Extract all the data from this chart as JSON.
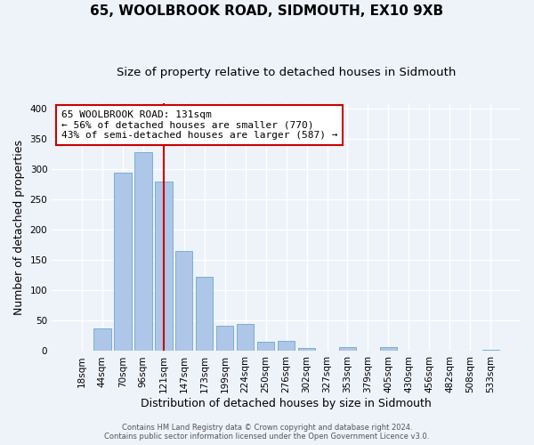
{
  "title": "65, WOOLBROOK ROAD, SIDMOUTH, EX10 9XB",
  "subtitle": "Size of property relative to detached houses in Sidmouth",
  "xlabel": "Distribution of detached houses by size in Sidmouth",
  "ylabel": "Number of detached properties",
  "bin_labels": [
    "18sqm",
    "44sqm",
    "70sqm",
    "96sqm",
    "121sqm",
    "147sqm",
    "173sqm",
    "199sqm",
    "224sqm",
    "250sqm",
    "276sqm",
    "302sqm",
    "327sqm",
    "353sqm",
    "379sqm",
    "405sqm",
    "430sqm",
    "456sqm",
    "482sqm",
    "508sqm",
    "533sqm"
  ],
  "bar_heights": [
    0,
    37,
    295,
    328,
    280,
    165,
    123,
    42,
    45,
    16,
    17,
    5,
    0,
    6,
    0,
    7,
    0,
    0,
    0,
    0,
    2
  ],
  "bar_color": "#aec6e8",
  "bar_edge_color": "#7aafd4",
  "vline_x_index": 4,
  "vline_color": "#cc0000",
  "annotation_line1": "65 WOOLBROOK ROAD: 131sqm",
  "annotation_line2": "← 56% of detached houses are smaller (770)",
  "annotation_line3": "43% of semi-detached houses are larger (587) →",
  "annotation_box_edgecolor": "#cc0000",
  "annotation_box_facecolor": "#ffffff",
  "ylim": [
    0,
    410
  ],
  "yticks": [
    0,
    50,
    100,
    150,
    200,
    250,
    300,
    350,
    400
  ],
  "footer1": "Contains HM Land Registry data © Crown copyright and database right 2024.",
  "footer2": "Contains public sector information licensed under the Open Government Licence v3.0.",
  "title_fontsize": 11,
  "subtitle_fontsize": 9.5,
  "xlabel_fontsize": 9,
  "ylabel_fontsize": 9,
  "annotation_fontsize": 8,
  "tick_fontsize": 7.5,
  "bg_color": "#eef2f9",
  "plot_bg_color": "#eef2f9"
}
